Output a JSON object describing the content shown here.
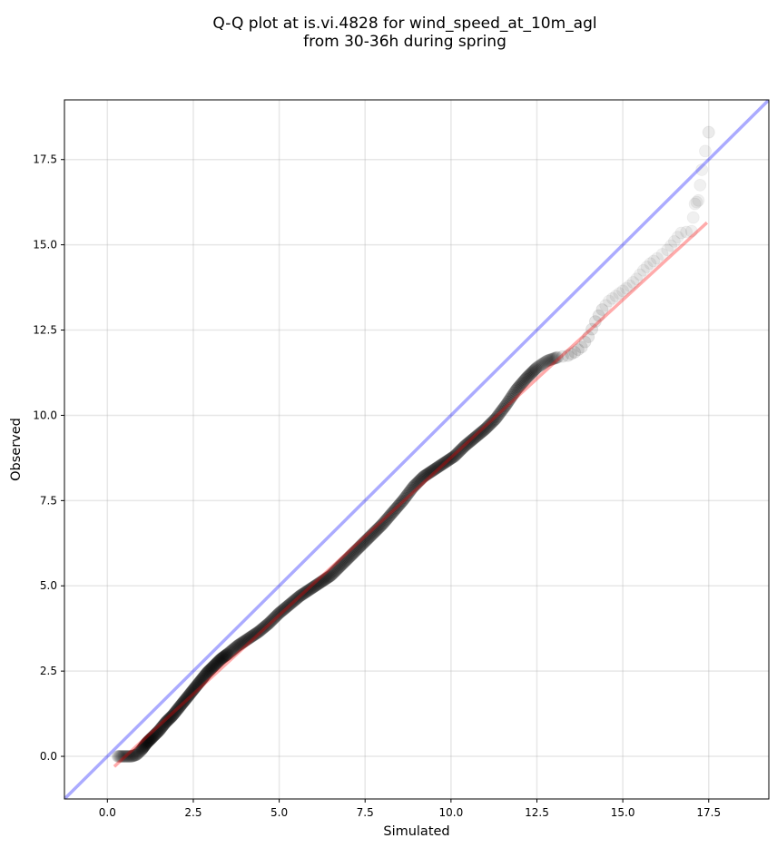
{
  "chart_data": {
    "type": "scatter",
    "title_line1": "Q-Q plot at is.vi.4828 for wind_speed_at_10m_agl",
    "title_line2": "from 30-36h during spring",
    "xlabel": "Simulated",
    "ylabel": "Observed",
    "xlim": [
      -1.25,
      19.25
    ],
    "ylim": [
      -1.25,
      19.25
    ],
    "xticks": [
      0.0,
      2.5,
      5.0,
      7.5,
      10.0,
      12.5,
      15.0,
      17.5
    ],
    "yticks": [
      0.0,
      2.5,
      5.0,
      7.5,
      10.0,
      12.5,
      15.0,
      17.5
    ],
    "xtick_labels": [
      "0.0",
      "2.5",
      "5.0",
      "7.5",
      "10.0",
      "12.5",
      "15.0",
      "17.5"
    ],
    "ytick_labels": [
      "0.0",
      "2.5",
      "5.0",
      "7.5",
      "10.0",
      "12.5",
      "15.0",
      "17.5"
    ],
    "grid": true,
    "quantiles": [
      [
        0.3,
        0.0
      ],
      [
        0.5,
        0.0
      ],
      [
        0.7,
        0.0
      ],
      [
        0.85,
        0.05
      ],
      [
        1.0,
        0.2
      ],
      [
        1.15,
        0.4
      ],
      [
        1.3,
        0.55
      ],
      [
        1.5,
        0.75
      ],
      [
        1.7,
        1.0
      ],
      [
        1.9,
        1.2
      ],
      [
        2.1,
        1.45
      ],
      [
        2.3,
        1.7
      ],
      [
        2.5,
        1.95
      ],
      [
        2.7,
        2.2
      ],
      [
        2.9,
        2.45
      ],
      [
        3.1,
        2.65
      ],
      [
        3.3,
        2.85
      ],
      [
        3.5,
        3.0
      ],
      [
        3.8,
        3.25
      ],
      [
        4.1,
        3.45
      ],
      [
        4.4,
        3.65
      ],
      [
        4.7,
        3.9
      ],
      [
        5.0,
        4.2
      ],
      [
        5.3,
        4.45
      ],
      [
        5.6,
        4.7
      ],
      [
        5.9,
        4.9
      ],
      [
        6.2,
        5.1
      ],
      [
        6.5,
        5.3
      ],
      [
        6.8,
        5.6
      ],
      [
        7.1,
        5.9
      ],
      [
        7.4,
        6.2
      ],
      [
        7.7,
        6.5
      ],
      [
        8.0,
        6.8
      ],
      [
        8.3,
        7.15
      ],
      [
        8.6,
        7.5
      ],
      [
        8.9,
        7.9
      ],
      [
        9.2,
        8.2
      ],
      [
        9.5,
        8.4
      ],
      [
        9.8,
        8.6
      ],
      [
        10.1,
        8.8
      ],
      [
        10.4,
        9.1
      ],
      [
        10.7,
        9.35
      ],
      [
        11.0,
        9.6
      ],
      [
        11.3,
        9.9
      ],
      [
        11.6,
        10.3
      ],
      [
        11.9,
        10.75
      ],
      [
        12.2,
        11.1
      ],
      [
        12.5,
        11.4
      ],
      [
        12.8,
        11.6
      ],
      [
        13.1,
        11.7
      ],
      [
        13.4,
        11.75
      ],
      [
        13.6,
        11.85
      ],
      [
        13.8,
        12.0
      ],
      [
        14.0,
        12.3
      ],
      [
        14.2,
        12.75
      ],
      [
        14.4,
        13.1
      ],
      [
        14.6,
        13.35
      ],
      [
        14.8,
        13.5
      ],
      [
        15.0,
        13.65
      ],
      [
        15.2,
        13.8
      ],
      [
        15.4,
        14.0
      ],
      [
        15.6,
        14.25
      ],
      [
        15.8,
        14.45
      ],
      [
        16.0,
        14.6
      ],
      [
        16.3,
        14.85
      ],
      [
        16.5,
        15.1
      ],
      [
        16.7,
        15.35
      ],
      [
        17.0,
        15.4
      ],
      [
        17.1,
        16.2
      ],
      [
        17.2,
        16.3
      ],
      [
        17.3,
        17.2
      ],
      [
        17.5,
        18.3
      ]
    ],
    "series": [
      {
        "role": "reference",
        "color": "#0000ff",
        "slope": 1.0,
        "intercept": 0.0
      },
      {
        "role": "fit",
        "color": "#ff0000",
        "x_range": [
          0.2,
          17.45
        ],
        "y_range": [
          -0.3,
          15.65
        ]
      }
    ],
    "marker_color": "#000000"
  }
}
